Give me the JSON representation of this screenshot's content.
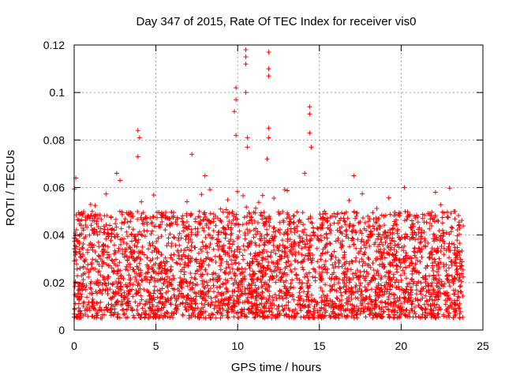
{
  "chart_data": {
    "type": "scatter",
    "title": "Day 347 of 2015, Rate Of TEC Index for receiver vis0",
    "xlabel": "GPS time / hours",
    "ylabel": "ROTI / TECUs",
    "xlim": [
      0,
      25
    ],
    "ylim": [
      0,
      0.12
    ],
    "xticks": [
      0,
      5,
      10,
      15,
      20,
      25
    ],
    "yticks": [
      0,
      0.02,
      0.04,
      0.06,
      0.08,
      0.1,
      0.12
    ],
    "xtick_labels": [
      "0",
      "5",
      "10",
      "15",
      "20",
      "25"
    ],
    "ytick_labels": [
      "0",
      "0.02",
      "0.04",
      "0.06",
      "0.08",
      "0.1",
      "0.12"
    ],
    "grid": true,
    "marker": "+",
    "marker_color": "#ff0000",
    "data_range_x": [
      0,
      23.8
    ],
    "dense_band_y": [
      0.005,
      0.05
    ],
    "series": [
      {
        "name": "vis0",
        "peaks": [
          {
            "x": 0.1,
            "y": 0.064
          },
          {
            "x": 2.6,
            "y": 0.066
          },
          {
            "x": 3.9,
            "y": 0.084
          },
          {
            "x": 4.0,
            "y": 0.081
          },
          {
            "x": 3.9,
            "y": 0.073
          },
          {
            "x": 7.2,
            "y": 0.074
          },
          {
            "x": 9.9,
            "y": 0.102
          },
          {
            "x": 9.9,
            "y": 0.097
          },
          {
            "x": 9.8,
            "y": 0.092
          },
          {
            "x": 9.9,
            "y": 0.082
          },
          {
            "x": 10.5,
            "y": 0.118
          },
          {
            "x": 10.5,
            "y": 0.115
          },
          {
            "x": 10.5,
            "y": 0.112
          },
          {
            "x": 10.5,
            "y": 0.1
          },
          {
            "x": 10.6,
            "y": 0.081
          },
          {
            "x": 10.6,
            "y": 0.077
          },
          {
            "x": 11.9,
            "y": 0.117
          },
          {
            "x": 11.9,
            "y": 0.11
          },
          {
            "x": 11.9,
            "y": 0.107
          },
          {
            "x": 11.9,
            "y": 0.085
          },
          {
            "x": 11.9,
            "y": 0.081
          },
          {
            "x": 11.8,
            "y": 0.072
          },
          {
            "x": 14.4,
            "y": 0.094
          },
          {
            "x": 14.4,
            "y": 0.091
          },
          {
            "x": 14.4,
            "y": 0.083
          },
          {
            "x": 14.5,
            "y": 0.077
          },
          {
            "x": 14.1,
            "y": 0.066
          },
          {
            "x": 17.1,
            "y": 0.065
          },
          {
            "x": 8.0,
            "y": 0.065
          },
          {
            "x": 2.8,
            "y": 0.063
          },
          {
            "x": 22.1,
            "y": 0.058
          },
          {
            "x": 20.2,
            "y": 0.06
          }
        ]
      }
    ]
  }
}
